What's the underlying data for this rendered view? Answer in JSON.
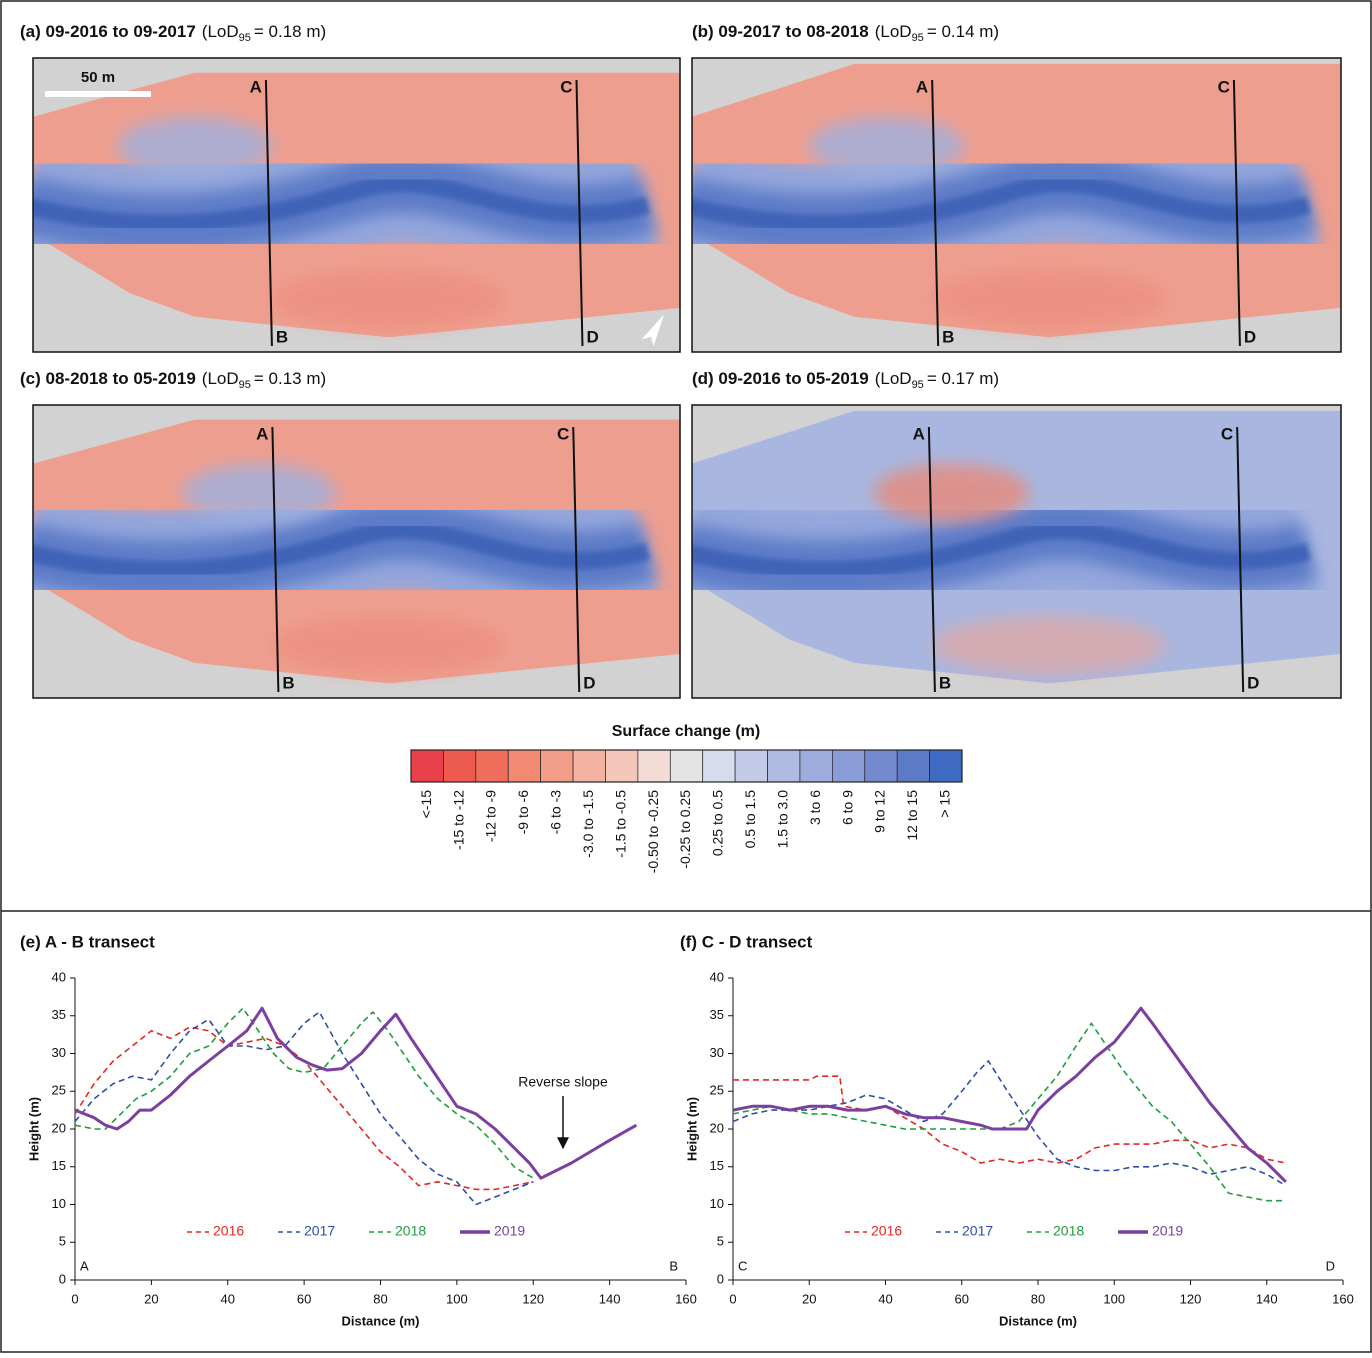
{
  "maps": {
    "scale_bar": "50 m",
    "panels": [
      {
        "period": "(a) 09-2016 to 09-2017",
        "lod_prefix": "(LoD",
        "lod_subscript": "95",
        "lod_suffix": "= 0.18 m)",
        "transects": [
          "A",
          "B",
          "C",
          "D"
        ]
      },
      {
        "period": "(b) 09-2017 to 08-2018",
        "lod_prefix": "(LoD",
        "lod_subscript": "95",
        "lod_suffix": "= 0.14 m)",
        "transects": [
          "A",
          "B",
          "C",
          "D"
        ]
      },
      {
        "period": "(c) 08-2018 to 05-2019",
        "lod_prefix": "(LoD",
        "lod_subscript": "95",
        "lod_suffix": "= 0.13 m)",
        "transects": [
          "A",
          "B",
          "C",
          "D"
        ]
      },
      {
        "period": "(d) 09-2016 to 05-2019",
        "lod_prefix": "(LoD",
        "lod_subscript": "95",
        "lod_suffix": "= 0.17 m)",
        "transects": [
          "A",
          "B",
          "C",
          "D"
        ]
      }
    ]
  },
  "legend": {
    "title": "Surface change (m)",
    "classes": [
      {
        "label": "<-15",
        "color": "#e8414b"
      },
      {
        "label": "-15 to -12",
        "color": "#ec5a50"
      },
      {
        "label": "-12 to -9",
        "color": "#ef6e5b"
      },
      {
        "label": "-9 to -6",
        "color": "#f28a73"
      },
      {
        "label": "-6 to -3",
        "color": "#f29d88"
      },
      {
        "label": "-3.0 to -1.5",
        "color": "#f4b3a2"
      },
      {
        "label": "-1.5 to -0.5",
        "color": "#f5c6ba"
      },
      {
        "label": "-0.50 to -0.25",
        "color": "#f3dcd5"
      },
      {
        "label": "-0.25 to 0.25",
        "color": "#e4e4e4"
      },
      {
        "label": "0.25 to 0.5",
        "color": "#d6dbed"
      },
      {
        "label": "0.5 to 1.5",
        "color": "#c3cbe8"
      },
      {
        "label": "1.5 to 3.0",
        "color": "#b0bbe2"
      },
      {
        "label": "3 to 6",
        "color": "#9dacdc"
      },
      {
        "label": "6 to 9",
        "color": "#8a9cd6"
      },
      {
        "label": "9 to 12",
        "color": "#748ace"
      },
      {
        "label": "12 to 15",
        "color": "#5c7ac6"
      },
      {
        "label": "> 15",
        "color": "#3f6bc2"
      }
    ]
  },
  "chart_data": [
    {
      "type": "line",
      "title": "(e) A - B transect",
      "xlabel": "Distance (m)",
      "ylabel": "Height (m)",
      "xlim": [
        0,
        160
      ],
      "xticks": [
        0,
        20,
        40,
        60,
        80,
        100,
        120,
        140,
        160
      ],
      "ylim": [
        0,
        40
      ],
      "yticks": [
        0,
        5,
        10,
        15,
        20,
        25,
        30,
        35,
        40
      ],
      "corner_labels": [
        "A",
        "B"
      ],
      "annotation": "Reverse slope",
      "series": [
        {
          "name": "2016",
          "color": "#e8261f",
          "style": "dashed",
          "x": [
            0,
            5,
            10,
            15,
            20,
            25,
            30,
            35,
            40,
            45,
            50,
            55,
            60,
            65,
            70,
            75,
            80,
            85,
            90,
            95,
            100,
            105,
            110,
            115,
            120
          ],
          "values": [
            22,
            26,
            29,
            31,
            33,
            32,
            33.5,
            33,
            31,
            31.5,
            32,
            31,
            29,
            26,
            23,
            20,
            17,
            15,
            12.5,
            13,
            12.5,
            12,
            12,
            12.5,
            13
          ]
        },
        {
          "name": "2017",
          "color": "#2b4fa8",
          "style": "dashed",
          "x": [
            0,
            5,
            10,
            15,
            20,
            25,
            30,
            35,
            40,
            45,
            50,
            55,
            60,
            64,
            70,
            75,
            80,
            85,
            90,
            95,
            100,
            105,
            110,
            115,
            120
          ],
          "values": [
            21,
            24,
            26,
            27,
            26.5,
            30,
            33,
            34.5,
            31,
            31,
            30.5,
            31,
            34,
            35.5,
            30,
            26,
            22,
            19,
            16,
            14,
            13,
            10,
            11,
            12,
            13
          ]
        },
        {
          "name": "2018",
          "color": "#1f9e3c",
          "style": "dashed",
          "x": [
            0,
            5,
            8,
            12,
            16,
            20,
            25,
            30,
            35,
            40,
            44,
            48,
            52,
            56,
            60,
            65,
            70,
            75,
            78,
            82,
            86,
            90,
            95,
            100,
            105,
            110,
            115,
            120
          ],
          "values": [
            20.5,
            20,
            20,
            22,
            24,
            25,
            27,
            30,
            31,
            34,
            36,
            33,
            30,
            28,
            27.5,
            28,
            31,
            34,
            35.5,
            33,
            30,
            27,
            24,
            22,
            20.5,
            18,
            15,
            13.5
          ]
        },
        {
          "name": "2019",
          "color": "#7b3fa0",
          "style": "solid",
          "x": [
            0,
            5,
            8,
            11,
            14,
            17,
            20,
            25,
            30,
            35,
            40,
            45,
            49,
            53,
            58,
            62,
            66,
            70,
            75,
            80,
            84,
            88,
            92,
            96,
            100,
            105,
            110,
            115,
            119,
            122,
            130,
            140,
            147
          ],
          "values": [
            22.5,
            21.5,
            20.5,
            20,
            21,
            22.5,
            22.5,
            24.5,
            27,
            29,
            31,
            33,
            36,
            32,
            29.5,
            28.5,
            27.8,
            28,
            30,
            33,
            35.2,
            32,
            29,
            26,
            23,
            22,
            20,
            17.5,
            15.5,
            13.5,
            15.5,
            18.5,
            20.5
          ]
        }
      ]
    },
    {
      "type": "line",
      "title": "(f) C - D transect",
      "xlabel": "Distance (m)",
      "ylabel": "Height (m)",
      "xlim": [
        0,
        160
      ],
      "xticks": [
        0,
        20,
        40,
        60,
        80,
        100,
        120,
        140,
        160
      ],
      "ylim": [
        0,
        40
      ],
      "yticks": [
        0,
        5,
        10,
        15,
        20,
        25,
        30,
        35,
        40
      ],
      "corner_labels": [
        "C",
        "D"
      ],
      "series": [
        {
          "name": "2016",
          "color": "#e8261f",
          "style": "dashed",
          "x": [
            0,
            5,
            10,
            15,
            20,
            22,
            28,
            29,
            35,
            40,
            45,
            50,
            55,
            60,
            65,
            70,
            75,
            80,
            85,
            90,
            95,
            100,
            105,
            110,
            115,
            120,
            125,
            130,
            135,
            140,
            145
          ],
          "values": [
            26.5,
            26.5,
            26.5,
            26.5,
            26.5,
            27,
            27,
            23,
            22.5,
            23,
            21.5,
            20,
            18,
            17,
            15.5,
            16,
            15.5,
            16,
            15.5,
            16,
            17.5,
            18,
            18,
            18,
            18.5,
            18.5,
            17.5,
            18,
            17.5,
            16,
            15.5
          ]
        },
        {
          "name": "2017",
          "color": "#2b4fa8",
          "style": "dashed",
          "x": [
            0,
            5,
            10,
            15,
            20,
            25,
            30,
            35,
            40,
            45,
            50,
            55,
            60,
            64,
            67,
            72,
            76,
            80,
            85,
            90,
            95,
            100,
            105,
            110,
            115,
            120,
            125,
            130,
            135,
            140,
            145
          ],
          "values": [
            21,
            22,
            22.5,
            22.5,
            22.5,
            23,
            23.5,
            24.5,
            24,
            22.5,
            21,
            22,
            25,
            27.5,
            29,
            25,
            22,
            19,
            16,
            15,
            14.5,
            14.5,
            15,
            15,
            15.5,
            15,
            14,
            14.5,
            15,
            14,
            12.5
          ]
        },
        {
          "name": "2018",
          "color": "#1f9e3c",
          "style": "dashed",
          "x": [
            0,
            5,
            10,
            15,
            20,
            25,
            30,
            35,
            40,
            45,
            50,
            55,
            60,
            65,
            70,
            75,
            80,
            85,
            90,
            94,
            98,
            102,
            106,
            110,
            115,
            120,
            125,
            130,
            135,
            140,
            145
          ],
          "values": [
            22,
            22.5,
            23,
            22.5,
            22,
            22,
            21.5,
            21,
            20.5,
            20,
            20,
            20,
            20,
            20,
            20,
            21,
            24,
            27,
            31,
            34,
            31,
            28,
            25.5,
            23,
            21,
            18,
            15,
            11.5,
            11,
            10.5,
            10.5
          ]
        },
        {
          "name": "2019",
          "color": "#7b3fa0",
          "style": "solid",
          "x": [
            0,
            5,
            10,
            15,
            20,
            25,
            30,
            35,
            40,
            45,
            50,
            55,
            60,
            65,
            68,
            72,
            77,
            80,
            85,
            90,
            95,
            100,
            104,
            107,
            110,
            115,
            120,
            125,
            130,
            135,
            140,
            145
          ],
          "values": [
            22.5,
            23,
            23,
            22.5,
            23,
            23,
            22.5,
            22.5,
            23,
            22,
            21.5,
            21.5,
            21,
            20.5,
            20,
            20,
            20,
            22.5,
            25,
            27,
            29.5,
            31.5,
            34,
            36,
            34,
            30.5,
            27,
            23.5,
            20.5,
            17.5,
            15.5,
            13
          ]
        }
      ]
    }
  ]
}
